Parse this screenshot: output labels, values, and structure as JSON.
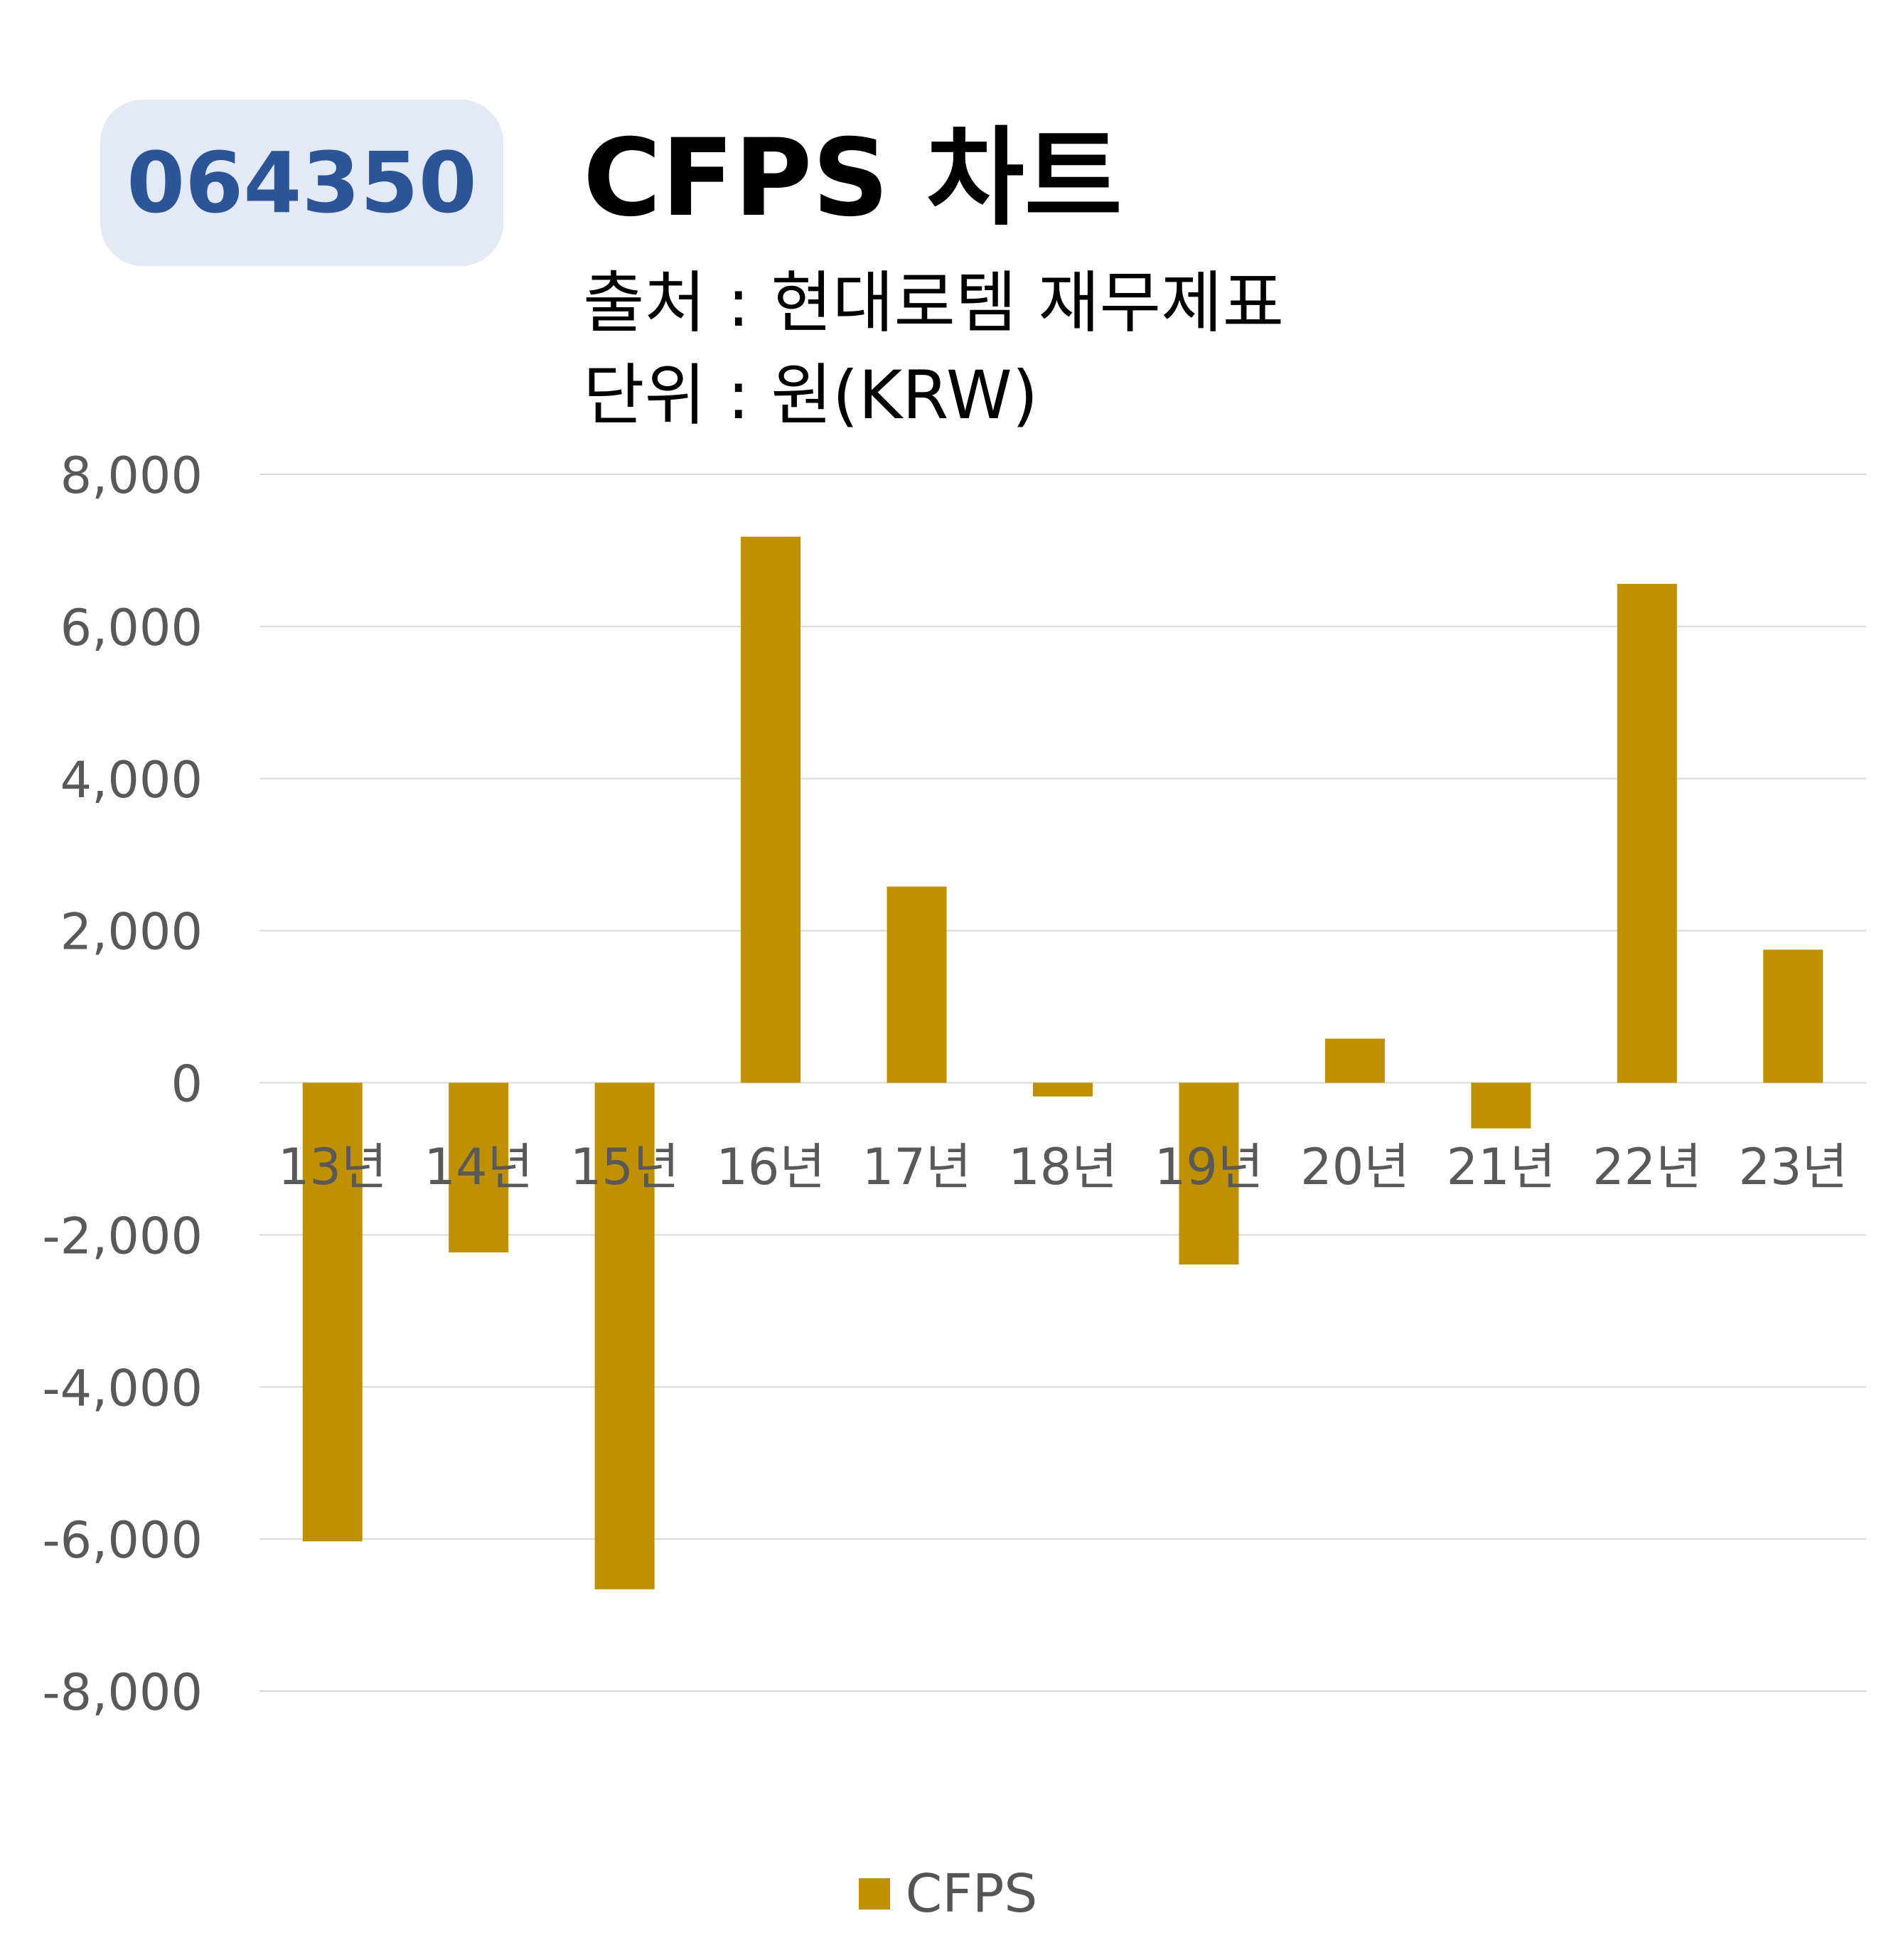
{
  "badge": {
    "code": "064350"
  },
  "header": {
    "title": "CFPS 차트",
    "source": "출처 : 현대로템 재무제표",
    "unit": "단위 : 원(KRW)"
  },
  "colors": {
    "bar": "#bf9000",
    "grid": "#d9d9d9",
    "axis_text": "#595959",
    "badge_bg": "#e4eaf5",
    "badge_text": "#2c5597"
  },
  "chart_data": {
    "type": "bar",
    "categories": [
      "13년",
      "14년",
      "15년",
      "16년",
      "17년",
      "18년",
      "19년",
      "20년",
      "21년",
      "22년",
      "23년"
    ],
    "series": [
      {
        "name": "CFPS",
        "values": [
          -6030,
          -2230,
          -6660,
          7180,
          2580,
          -180,
          -2390,
          580,
          -600,
          6560,
          1750
        ]
      }
    ],
    "ylim": [
      -8000,
      8000
    ],
    "yticks": [
      8000,
      6000,
      4000,
      2000,
      0,
      -2000,
      -4000,
      -6000,
      -8000
    ],
    "ytick_labels": [
      "8,000",
      "6,000",
      "4,000",
      "2,000",
      "0",
      "-2,000",
      "-4,000",
      "-6,000",
      "-8,000"
    ],
    "grid": true,
    "legend": "bottom"
  }
}
